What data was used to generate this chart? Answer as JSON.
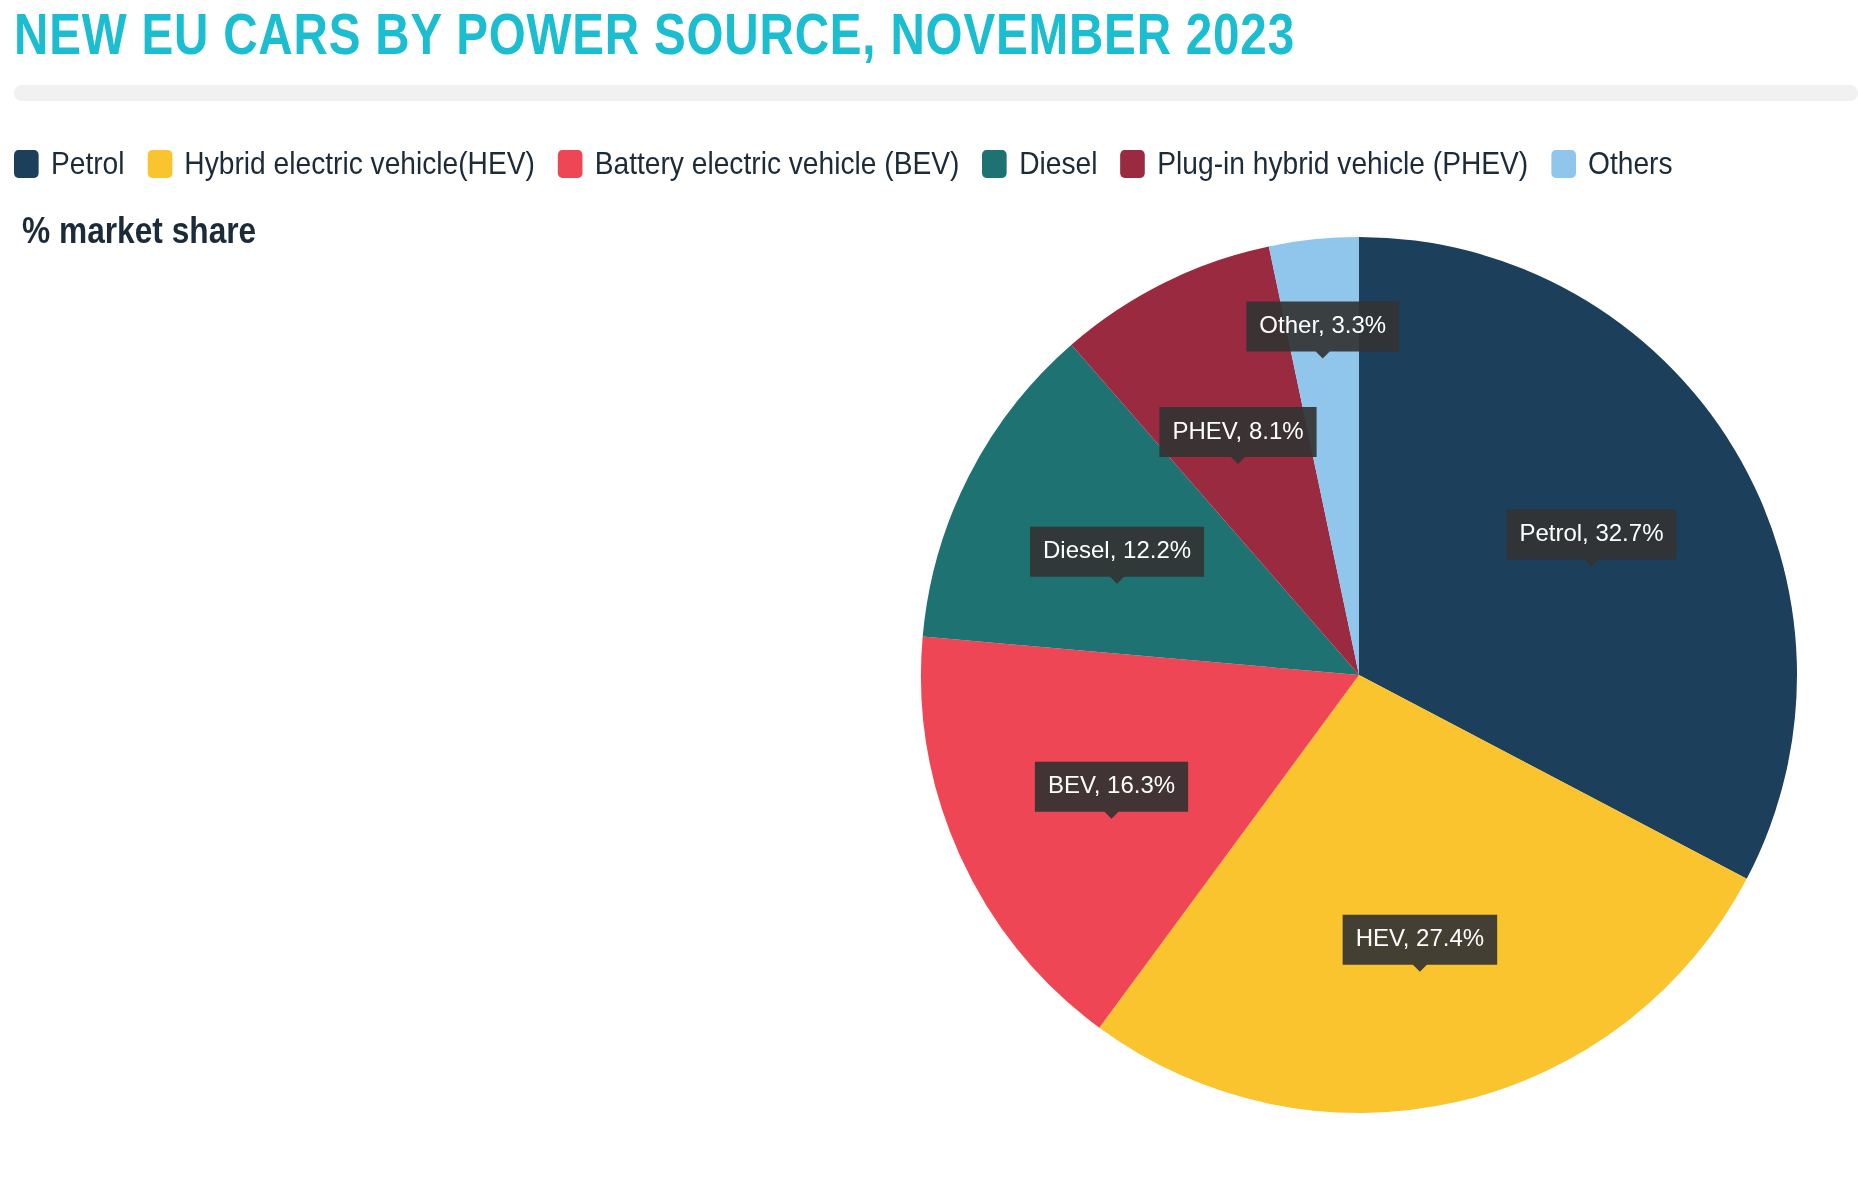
{
  "chart_data": {
    "type": "pie",
    "title": "NEW EU CARS BY POWER SOURCE, NOVEMBER 2023",
    "subtitle": "% market share",
    "categories": [
      "Petrol",
      "Hybrid electric vehicle(HEV)",
      "Battery electric vehicle (BEV)",
      "Diesel",
      "Plug-in hybrid vehicle (PHEV)",
      "Others"
    ],
    "values": [
      32.7,
      27.4,
      16.3,
      12.2,
      8.1,
      3.3
    ],
    "colors": [
      "#1c3f5c",
      "#f9c42d",
      "#ee4655",
      "#1e7272",
      "#9a2a40",
      "#90c5ec"
    ],
    "value_labels": [
      "Petrol, 32.7%",
      "HEV, 27.4%",
      "BEV, 16.3%",
      "Diesel, 12.2%",
      "PHEV, 8.1%",
      "Other, 3.3%"
    ],
    "legend": "top"
  }
}
